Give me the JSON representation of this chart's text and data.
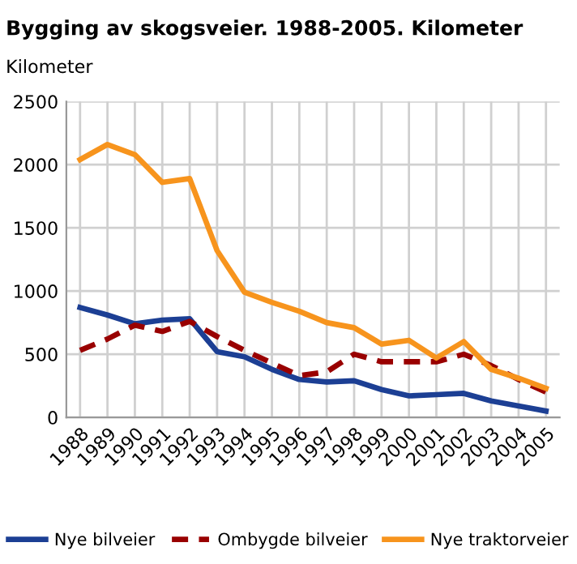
{
  "chart_data": {
    "type": "line",
    "title": "Bygging av skogsveier. 1988-2005. Kilometer",
    "ylabel": "Kilometer",
    "categories": [
      "1988",
      "1989",
      "1990",
      "1991",
      "1992",
      "1993",
      "1994",
      "1995",
      "1996",
      "1997",
      "1998",
      "1999",
      "2000",
      "2001",
      "2002",
      "2003",
      "2004",
      "2005"
    ],
    "series": [
      {
        "name": "Nye bilveier",
        "color": "#1c3f94",
        "line_style": "solid",
        "values": [
          870,
          810,
          740,
          770,
          780,
          520,
          480,
          380,
          300,
          280,
          290,
          220,
          170,
          180,
          190,
          130,
          90,
          50
        ]
      },
      {
        "name": "Ombygde bilveier",
        "color": "#990000",
        "line_style": "dashed",
        "values": [
          530,
          620,
          730,
          680,
          760,
          640,
          530,
          430,
          330,
          360,
          500,
          440,
          440,
          440,
          500,
          410,
          300,
          200
        ]
      },
      {
        "name": "Nye traktorveier",
        "color": "#f7941d",
        "line_style": "solid",
        "values": [
          2040,
          2160,
          2080,
          1860,
          1890,
          1320,
          990,
          910,
          840,
          750,
          710,
          580,
          610,
          470,
          600,
          380,
          310,
          230
        ]
      }
    ],
    "ylim": [
      0,
      2500
    ],
    "yticks": [
      0,
      500,
      1000,
      1500,
      2000,
      2500
    ],
    "grid": true,
    "legend": "bottom",
    "marker": "none"
  }
}
